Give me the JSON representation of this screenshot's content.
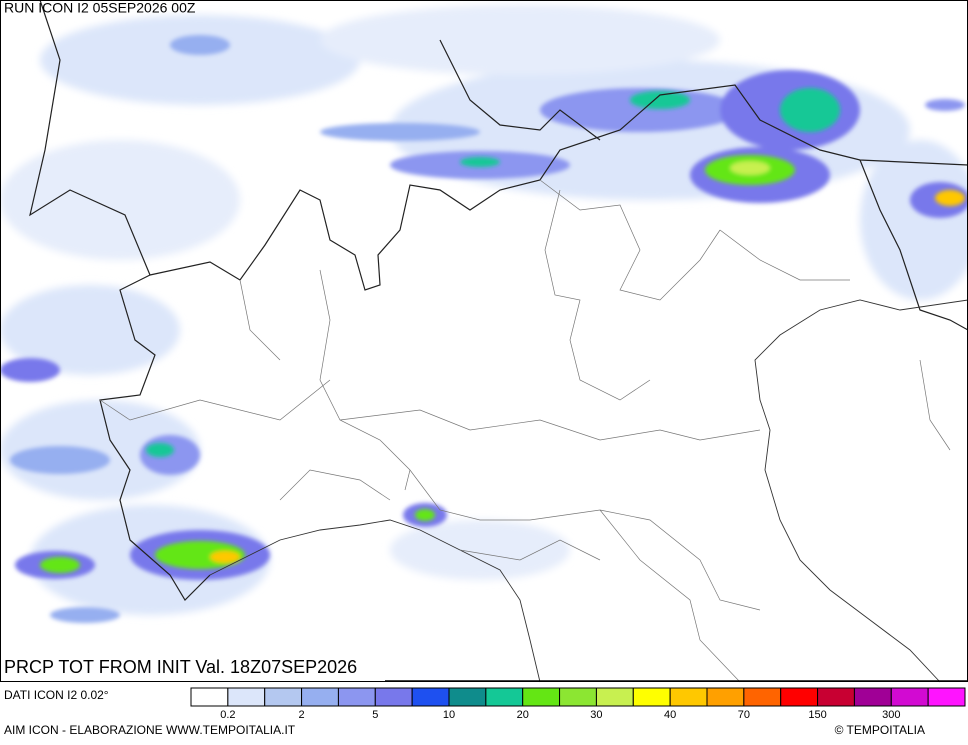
{
  "header": {
    "run": "RUN ICON I2 05SEP2026 00Z"
  },
  "product": {
    "title": "PRCP TOT FROM INIT Val. 18Z07SEP2026",
    "source": "DATI ICON I2 0.02°"
  },
  "legend": {
    "colors": [
      "#ffffff",
      "#dce6fa",
      "#b4c8f0",
      "#96aff0",
      "#8c96f0",
      "#7878eb",
      "#1e50f0",
      "#0f8c8c",
      "#14c896",
      "#64e614",
      "#8ce632",
      "#c8f050",
      "#ffff00",
      "#ffc800",
      "#ffa000",
      "#ff6400",
      "#ff0000",
      "#c80032",
      "#a00096",
      "#d20ad2",
      "#ff14ff"
    ],
    "labels": [
      "0.2",
      "2",
      "5",
      "10",
      "20",
      "30",
      "40",
      "70",
      "150",
      "300"
    ]
  },
  "footer": {
    "credit": "AIM ICON - ELABORAZIONE WWW.TEMPOITALIA.IT",
    "copyright": "© TEMPOITALIA"
  }
}
